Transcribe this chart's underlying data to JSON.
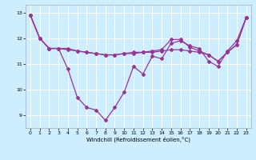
{
  "xlabel": "Windchill (Refroidissement éolien,°C)",
  "xlim": [
    -0.5,
    23.5
  ],
  "ylim": [
    8.5,
    13.3
  ],
  "yticks": [
    9,
    10,
    11,
    12,
    13
  ],
  "xticks": [
    0,
    1,
    2,
    3,
    4,
    5,
    6,
    7,
    8,
    9,
    10,
    11,
    12,
    13,
    14,
    15,
    16,
    17,
    18,
    19,
    20,
    21,
    22,
    23
  ],
  "bg_color": "#cceeff",
  "grid_color": "#ffffff",
  "line_color": "#993399",
  "line1": [
    12.9,
    12.0,
    11.6,
    11.6,
    10.8,
    9.7,
    9.3,
    9.2,
    8.8,
    9.3,
    9.9,
    10.9,
    10.6,
    11.3,
    11.2,
    11.8,
    11.9,
    11.7,
    11.6,
    11.1,
    10.9,
    11.5,
    11.9,
    12.8
  ],
  "line2": [
    12.9,
    12.0,
    11.6,
    11.6,
    11.6,
    11.5,
    11.45,
    11.4,
    11.35,
    11.35,
    11.4,
    11.4,
    11.45,
    11.45,
    11.5,
    11.55,
    11.55,
    11.5,
    11.45,
    11.35,
    11.1,
    11.45,
    11.75,
    12.8
  ],
  "line3": [
    12.9,
    12.0,
    11.6,
    11.6,
    11.55,
    11.5,
    11.45,
    11.4,
    11.35,
    11.35,
    11.4,
    11.45,
    11.45,
    11.5,
    11.55,
    11.95,
    11.95,
    11.65,
    11.5,
    11.35,
    11.1,
    11.45,
    11.75,
    12.8
  ]
}
